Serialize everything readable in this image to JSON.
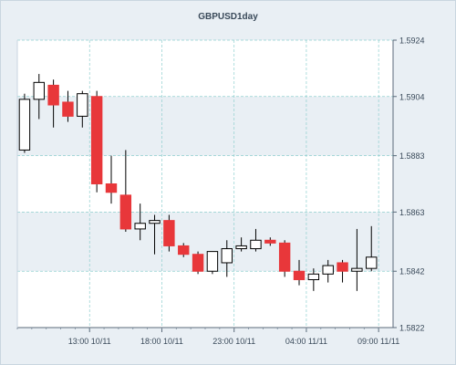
{
  "chart_data": {
    "type": "candlestick",
    "title": "GBPUSD1day",
    "xlabel": "",
    "ylabel": "",
    "ylim": [
      1.5822,
      1.5924
    ],
    "y_ticks": [
      "1.5924",
      "1.5904",
      "1.5883",
      "1.5863",
      "1.5842",
      "1.5822"
    ],
    "x_ticks": [
      {
        "label": "13:00 10/11",
        "index": 4.5
      },
      {
        "label": "18:00 10/11",
        "index": 9.5
      },
      {
        "label": "23:00 10/11",
        "index": 14.5
      },
      {
        "label": "04:00 11/11",
        "index": 19.5
      },
      {
        "label": "09:00 11/11",
        "index": 24.5
      }
    ],
    "grid": true,
    "colors": {
      "bull_fill": "#ffffff",
      "bear_fill": "#e8373a",
      "stroke": "#000000",
      "grid": "#8fcfcf"
    },
    "candles": [
      {
        "open": 1.5885,
        "high": 1.5905,
        "low": 1.5884,
        "close": 1.5903
      },
      {
        "open": 1.5903,
        "high": 1.5912,
        "low": 1.5896,
        "close": 1.5909
      },
      {
        "open": 1.5908,
        "high": 1.591,
        "low": 1.5893,
        "close": 1.5901
      },
      {
        "open": 1.5902,
        "high": 1.5906,
        "low": 1.5895,
        "close": 1.5897
      },
      {
        "open": 1.5897,
        "high": 1.5906,
        "low": 1.5893,
        "close": 1.5905
      },
      {
        "open": 1.5904,
        "high": 1.5906,
        "low": 1.587,
        "close": 1.5873
      },
      {
        "open": 1.5873,
        "high": 1.5883,
        "low": 1.5866,
        "close": 1.587
      },
      {
        "open": 1.5869,
        "high": 1.5885,
        "low": 1.5856,
        "close": 1.5857
      },
      {
        "open": 1.5857,
        "high": 1.5866,
        "low": 1.5853,
        "close": 1.5859
      },
      {
        "open": 1.5859,
        "high": 1.5862,
        "low": 1.5848,
        "close": 1.586
      },
      {
        "open": 1.586,
        "high": 1.5862,
        "low": 1.5849,
        "close": 1.5851
      },
      {
        "open": 1.5851,
        "high": 1.5852,
        "low": 1.5847,
        "close": 1.5848
      },
      {
        "open": 1.5848,
        "high": 1.5849,
        "low": 1.5841,
        "close": 1.5842
      },
      {
        "open": 1.5842,
        "high": 1.5849,
        "low": 1.5841,
        "close": 1.5849
      },
      {
        "open": 1.5845,
        "high": 1.5853,
        "low": 1.584,
        "close": 1.585
      },
      {
        "open": 1.585,
        "high": 1.5854,
        "low": 1.5849,
        "close": 1.5851
      },
      {
        "open": 1.585,
        "high": 1.5857,
        "low": 1.5849,
        "close": 1.5853
      },
      {
        "open": 1.5853,
        "high": 1.5854,
        "low": 1.5851,
        "close": 1.5852
      },
      {
        "open": 1.5852,
        "high": 1.5853,
        "low": 1.584,
        "close": 1.5842
      },
      {
        "open": 1.5842,
        "high": 1.5846,
        "low": 1.5837,
        "close": 1.5839
      },
      {
        "open": 1.5839,
        "high": 1.5843,
        "low": 1.5835,
        "close": 1.5841
      },
      {
        "open": 1.5841,
        "high": 1.5846,
        "low": 1.5838,
        "close": 1.5844
      },
      {
        "open": 1.5845,
        "high": 1.5846,
        "low": 1.5838,
        "close": 1.5842
      },
      {
        "open": 1.5842,
        "high": 1.5857,
        "low": 1.5835,
        "close": 1.5843
      },
      {
        "open": 1.5843,
        "high": 1.5858,
        "low": 1.5842,
        "close": 1.5847
      }
    ]
  }
}
